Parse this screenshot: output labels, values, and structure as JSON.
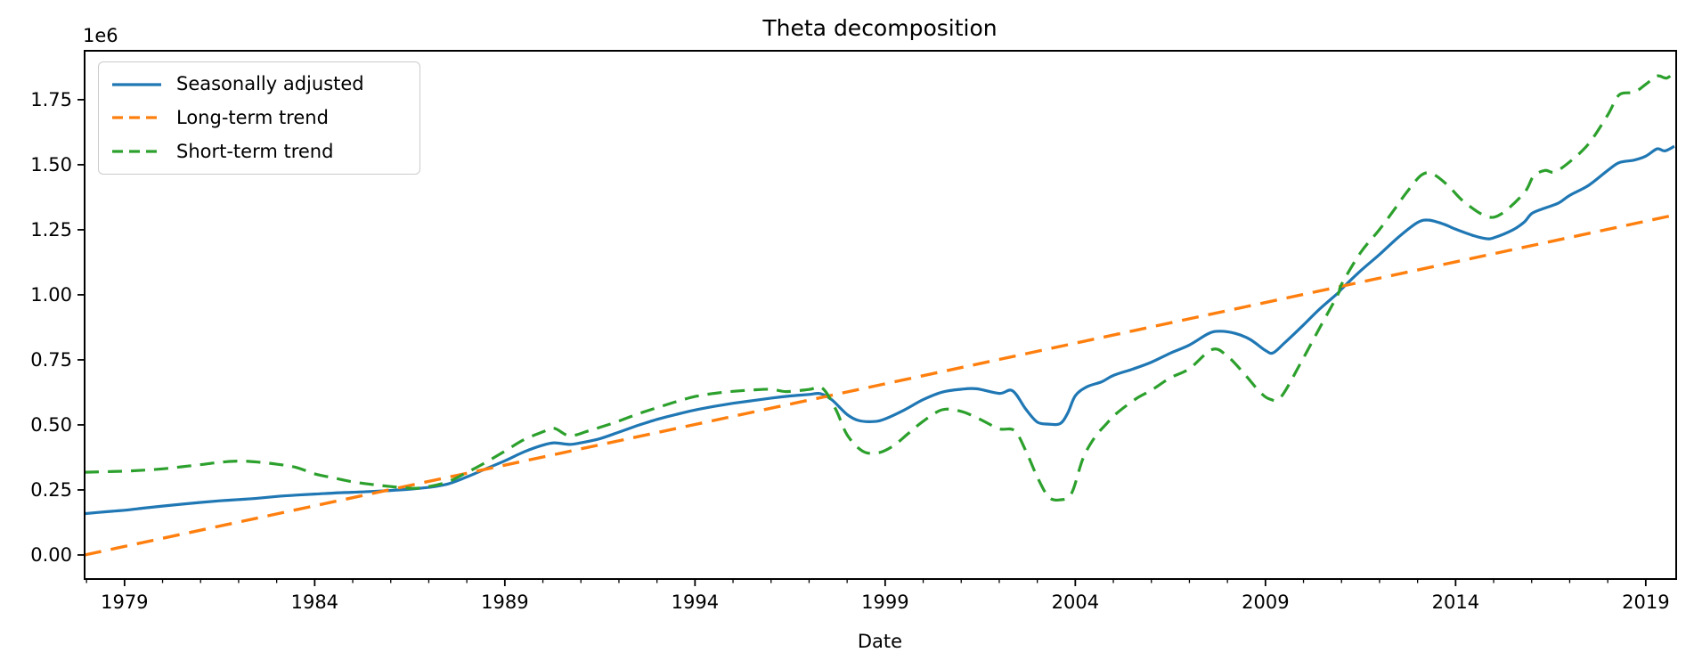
{
  "figure": {
    "background": "#ffffff",
    "text_color": "#000000",
    "spine_color": "#000000"
  },
  "chart_data": {
    "type": "line",
    "title": "Theta decomposition",
    "xlabel": "Date",
    "ylabel": "",
    "y_offset_label": "1e6",
    "legend_position": "upper-left",
    "grid": false,
    "axis": {
      "x_min": 1977.95,
      "x_max": 2019.8,
      "y_min": -0.0925,
      "y_max": 1.938,
      "x_major_ticks": [
        1979,
        1984,
        1989,
        1994,
        1999,
        2004,
        2009,
        2014,
        2019
      ],
      "x_major_tick_labels": [
        "1979",
        "1984",
        "1989",
        "1994",
        "1999",
        "2004",
        "2009",
        "2014",
        "2019"
      ],
      "x_minor_tick_years_start": 1978,
      "x_minor_tick_years_end": 2019,
      "y_ticks": [
        0.0,
        0.25,
        0.5,
        0.75,
        1.0,
        1.25,
        1.5,
        1.75
      ],
      "y_tick_labels": [
        "0.00",
        "0.25",
        "0.50",
        "0.75",
        "1.00",
        "1.25",
        "1.50",
        "1.75"
      ]
    },
    "series": [
      {
        "name": "Seasonally adjusted",
        "color": "#1f77b4",
        "style": "solid",
        "width": 3.2,
        "points": [
          [
            1977.95,
            0.159
          ],
          [
            1978.5,
            0.166
          ],
          [
            1979,
            0.172
          ],
          [
            1979.5,
            0.18
          ],
          [
            1980,
            0.188
          ],
          [
            1980.5,
            0.195
          ],
          [
            1981,
            0.202
          ],
          [
            1981.5,
            0.208
          ],
          [
            1982,
            0.213
          ],
          [
            1982.5,
            0.218
          ],
          [
            1983,
            0.225
          ],
          [
            1983.5,
            0.23
          ],
          [
            1984,
            0.234
          ],
          [
            1984.5,
            0.238
          ],
          [
            1985,
            0.241
          ],
          [
            1985.5,
            0.244
          ],
          [
            1986,
            0.248
          ],
          [
            1986.5,
            0.253
          ],
          [
            1987,
            0.26
          ],
          [
            1987.5,
            0.273
          ],
          [
            1988,
            0.3
          ],
          [
            1988.5,
            0.331
          ],
          [
            1989,
            0.362
          ],
          [
            1989.5,
            0.396
          ],
          [
            1990,
            0.422
          ],
          [
            1990.3,
            0.431
          ],
          [
            1990.7,
            0.425
          ],
          [
            1991,
            0.431
          ],
          [
            1991.5,
            0.447
          ],
          [
            1992,
            0.472
          ],
          [
            1992.5,
            0.498
          ],
          [
            1993,
            0.521
          ],
          [
            1993.5,
            0.54
          ],
          [
            1994,
            0.557
          ],
          [
            1994.5,
            0.571
          ],
          [
            1995,
            0.583
          ],
          [
            1995.5,
            0.593
          ],
          [
            1996,
            0.603
          ],
          [
            1996.5,
            0.611
          ],
          [
            1997,
            0.617
          ],
          [
            1997.3,
            0.62
          ],
          [
            1997.6,
            0.596
          ],
          [
            1998,
            0.54
          ],
          [
            1998.3,
            0.517
          ],
          [
            1998.7,
            0.513
          ],
          [
            1999,
            0.523
          ],
          [
            1999.5,
            0.557
          ],
          [
            2000,
            0.597
          ],
          [
            2000.5,
            0.626
          ],
          [
            2001,
            0.637
          ],
          [
            2001.4,
            0.639
          ],
          [
            2002,
            0.621
          ],
          [
            2002.35,
            0.631
          ],
          [
            2002.7,
            0.56
          ],
          [
            2003,
            0.511
          ],
          [
            2003.3,
            0.503
          ],
          [
            2003.6,
            0.505
          ],
          [
            2003.8,
            0.545
          ],
          [
            2004,
            0.612
          ],
          [
            2004.3,
            0.646
          ],
          [
            2004.7,
            0.666
          ],
          [
            2005,
            0.69
          ],
          [
            2005.5,
            0.714
          ],
          [
            2006,
            0.741
          ],
          [
            2006.5,
            0.776
          ],
          [
            2007,
            0.807
          ],
          [
            2007.5,
            0.851
          ],
          [
            2007.8,
            0.86
          ],
          [
            2008.2,
            0.852
          ],
          [
            2008.6,
            0.828
          ],
          [
            2009,
            0.786
          ],
          [
            2009.2,
            0.777
          ],
          [
            2009.5,
            0.815
          ],
          [
            2010,
            0.884
          ],
          [
            2010.4,
            0.942
          ],
          [
            2010.9,
            1.006
          ],
          [
            2011,
            1.022
          ],
          [
            2011.5,
            1.092
          ],
          [
            2012,
            1.155
          ],
          [
            2012.5,
            1.222
          ],
          [
            2013,
            1.278
          ],
          [
            2013.3,
            1.287
          ],
          [
            2013.7,
            1.271
          ],
          [
            2014,
            1.252
          ],
          [
            2014.5,
            1.226
          ],
          [
            2014.8,
            1.216
          ],
          [
            2015,
            1.219
          ],
          [
            2015.5,
            1.249
          ],
          [
            2015.8,
            1.279
          ],
          [
            2016,
            1.312
          ],
          [
            2016.3,
            1.331
          ],
          [
            2016.7,
            1.352
          ],
          [
            2017,
            1.382
          ],
          [
            2017.5,
            1.421
          ],
          [
            2018,
            1.478
          ],
          [
            2018.3,
            1.508
          ],
          [
            2018.7,
            1.518
          ],
          [
            2019,
            1.533
          ],
          [
            2019.3,
            1.561
          ],
          [
            2019.5,
            1.553
          ],
          [
            2019.75,
            1.571
          ]
        ]
      },
      {
        "name": "Long-term trend",
        "color": "#ff7f0e",
        "style": "dashed",
        "dash": [
          19,
          11
        ],
        "width": 3.4,
        "points": [
          [
            1977.95,
            0.0
          ],
          [
            2019.8,
            1.308
          ]
        ]
      },
      {
        "name": "Short-term trend",
        "color": "#2ca02c",
        "style": "dashed",
        "dash": [
          16,
          10
        ],
        "width": 3.2,
        "points": [
          [
            1977.95,
            0.318
          ],
          [
            1978.5,
            0.32
          ],
          [
            1979,
            0.322
          ],
          [
            1979.5,
            0.326
          ],
          [
            1980,
            0.331
          ],
          [
            1980.5,
            0.339
          ],
          [
            1981,
            0.347
          ],
          [
            1981.5,
            0.356
          ],
          [
            1982,
            0.361
          ],
          [
            1982.5,
            0.357
          ],
          [
            1983,
            0.349
          ],
          [
            1983.5,
            0.337
          ],
          [
            1984,
            0.312
          ],
          [
            1984.5,
            0.296
          ],
          [
            1985,
            0.281
          ],
          [
            1985.5,
            0.271
          ],
          [
            1986,
            0.263
          ],
          [
            1986.6,
            0.256
          ],
          [
            1987,
            0.263
          ],
          [
            1987.5,
            0.281
          ],
          [
            1988,
            0.317
          ],
          [
            1988.5,
            0.356
          ],
          [
            1989,
            0.399
          ],
          [
            1989.5,
            0.443
          ],
          [
            1990,
            0.473
          ],
          [
            1990.3,
            0.487
          ],
          [
            1990.7,
            0.458
          ],
          [
            1991.2,
            0.477
          ],
          [
            1991.7,
            0.5
          ],
          [
            1992,
            0.515
          ],
          [
            1992.5,
            0.542
          ],
          [
            1993,
            0.566
          ],
          [
            1993.5,
            0.589
          ],
          [
            1994,
            0.609
          ],
          [
            1994.5,
            0.621
          ],
          [
            1995,
            0.629
          ],
          [
            1995.5,
            0.634
          ],
          [
            1996,
            0.637
          ],
          [
            1996.4,
            0.628
          ],
          [
            1997,
            0.636
          ],
          [
            1997.35,
            0.641
          ],
          [
            1997.7,
            0.56
          ],
          [
            1998,
            0.462
          ],
          [
            1998.4,
            0.4
          ],
          [
            1998.8,
            0.392
          ],
          [
            1999.2,
            0.418
          ],
          [
            1999.6,
            0.466
          ],
          [
            2000,
            0.514
          ],
          [
            2000.5,
            0.558
          ],
          [
            2001,
            0.552
          ],
          [
            2001.5,
            0.521
          ],
          [
            2002,
            0.485
          ],
          [
            2002.4,
            0.478
          ],
          [
            2002.7,
            0.4
          ],
          [
            2003,
            0.3
          ],
          [
            2003.3,
            0.223
          ],
          [
            2003.6,
            0.212
          ],
          [
            2003.9,
            0.237
          ],
          [
            2004.2,
            0.37
          ],
          [
            2004.5,
            0.45
          ],
          [
            2004.8,
            0.501
          ],
          [
            2005.1,
            0.546
          ],
          [
            2005.6,
            0.601
          ],
          [
            2006,
            0.633
          ],
          [
            2006.5,
            0.681
          ],
          [
            2007,
            0.716
          ],
          [
            2007.6,
            0.79
          ],
          [
            2008,
            0.764
          ],
          [
            2008.45,
            0.695
          ],
          [
            2008.85,
            0.627
          ],
          [
            2009.1,
            0.6
          ],
          [
            2009.4,
            0.606
          ],
          [
            2009.9,
            0.731
          ],
          [
            2010.4,
            0.866
          ],
          [
            2010.9,
            1.0
          ],
          [
            2011,
            1.04
          ],
          [
            2011.5,
            1.162
          ],
          [
            2012,
            1.251
          ],
          [
            2012.4,
            1.33
          ],
          [
            2012.7,
            1.391
          ],
          [
            2013.1,
            1.46
          ],
          [
            2013.4,
            1.464
          ],
          [
            2013.8,
            1.42
          ],
          [
            2014.2,
            1.36
          ],
          [
            2014.8,
            1.302
          ],
          [
            2015.2,
            1.311
          ],
          [
            2015.8,
            1.391
          ],
          [
            2016.05,
            1.456
          ],
          [
            2016.35,
            1.478
          ],
          [
            2016.6,
            1.472
          ],
          [
            2017,
            1.511
          ],
          [
            2017.5,
            1.581
          ],
          [
            2018,
            1.691
          ],
          [
            2018.3,
            1.768
          ],
          [
            2018.7,
            1.779
          ],
          [
            2019,
            1.809
          ],
          [
            2019.3,
            1.841
          ],
          [
            2019.55,
            1.833
          ],
          [
            2019.75,
            1.856
          ]
        ]
      }
    ]
  }
}
